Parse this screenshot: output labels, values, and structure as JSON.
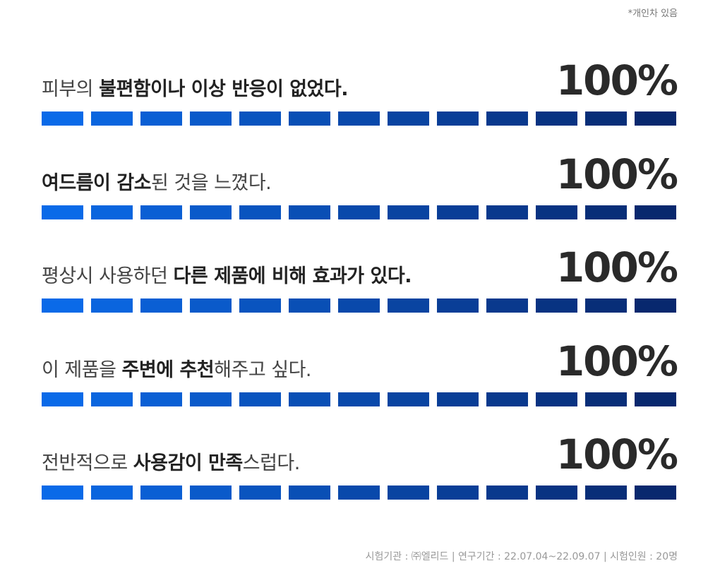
{
  "note": "*개인차 있음",
  "items": [
    {
      "parts": [
        {
          "text": "피부의 ",
          "bold": false
        },
        {
          "text": "불편함이나 이상 반응이 없었다.",
          "bold": true
        }
      ],
      "value": "100%"
    },
    {
      "parts": [
        {
          "text": "여드름이 감소",
          "bold": true
        },
        {
          "text": "된 것을 느꼈다.",
          "bold": false
        }
      ],
      "value": "100%"
    },
    {
      "parts": [
        {
          "text": "평상시 사용하던 ",
          "bold": false
        },
        {
          "text": "다른 제품에 비해 효과가 있다.",
          "bold": true
        }
      ],
      "value": "100%"
    },
    {
      "parts": [
        {
          "text": "이 제품을 ",
          "bold": false
        },
        {
          "text": "주변에 추천",
          "bold": true
        },
        {
          "text": "해주고 싶다.",
          "bold": false
        }
      ],
      "value": "100%"
    },
    {
      "parts": [
        {
          "text": "전반적으로 ",
          "bold": false
        },
        {
          "text": "사용감이 만족",
          "bold": true
        },
        {
          "text": "스럽다.",
          "bold": false
        }
      ],
      "value": "100%"
    }
  ],
  "footer": "시험기관 : ㈜엘리드 | 연구기간 : 22.07.04~22.09.07 | 시험인원 : 20명"
}
